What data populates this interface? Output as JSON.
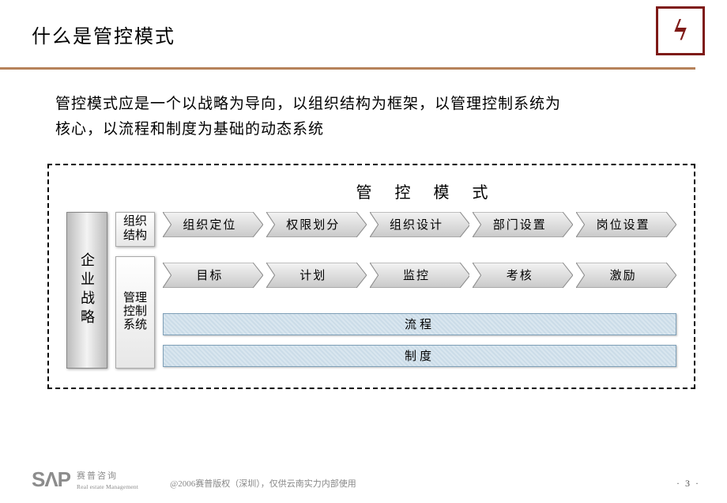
{
  "title": "什么是管控模式",
  "subtitle_line1": "管控模式应是一个以战略为导向，以组织结构为框架，以管理控制系统为",
  "subtitle_line2": "核心，以流程和制度为基础的动态系统",
  "diagram": {
    "heading": "管 控 模 式",
    "left_box": "企业战略",
    "mid_box_top": "组织结构",
    "mid_box_bottom": "管理控制系统",
    "row1": [
      "组织定位",
      "权限划分",
      "组织设计",
      "部门设置",
      "岗位设置"
    ],
    "row2": [
      "目标",
      "计划",
      "监控",
      "考核",
      "激励"
    ],
    "bars": [
      "流程",
      "制度"
    ],
    "colors": {
      "arrow_fill_light": "#f3f3f3",
      "arrow_fill_dark": "#c9c9c9",
      "arrow_stroke": "#8a8a8a",
      "bar_border": "#7fa0b8",
      "bar_fill_a": "#d9e6ef",
      "bar_fill_b": "#cbdce8",
      "rule": "#b6825a",
      "logo_border": "#7e1a17"
    }
  },
  "footer": {
    "sap": "SΛP",
    "sap_cn": "赛普咨询",
    "sap_en": "Real estate Management",
    "copyright": "@2006赛普版权（深圳），仅供云南实力内部使用",
    "page": "· 3 ·"
  }
}
